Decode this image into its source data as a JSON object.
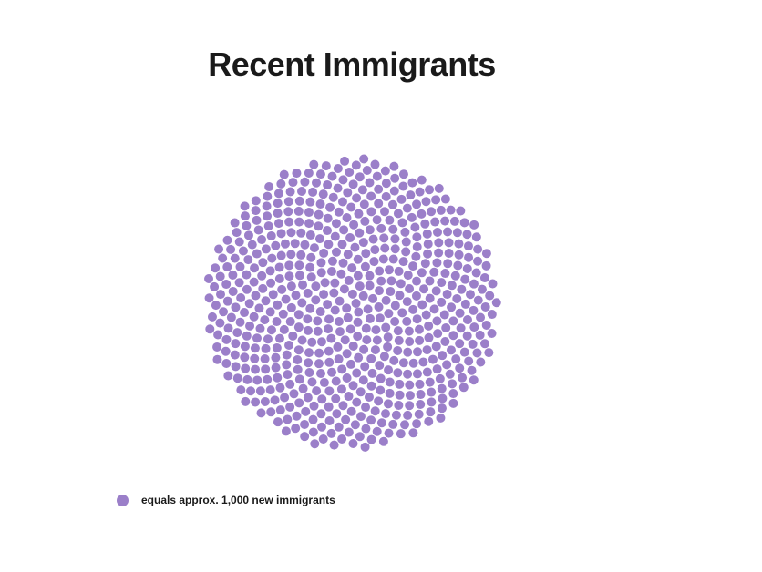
{
  "title": "Recent Immigrants",
  "legend": {
    "label": "equals approx. 1,000 new immigrants",
    "color": "#9b7fc9"
  },
  "chart_data": {
    "type": "scatter",
    "encoding": "unit dot cluster (each dot ≈ 1,000 new immigrants)",
    "title": "Recent Immigrants",
    "dot_count": 620,
    "approx_total_new_immigrants": 620000,
    "dot_value": 1000,
    "dot_color": "#9b7fc9",
    "legend_placement": "bottom-left",
    "grid": false
  }
}
